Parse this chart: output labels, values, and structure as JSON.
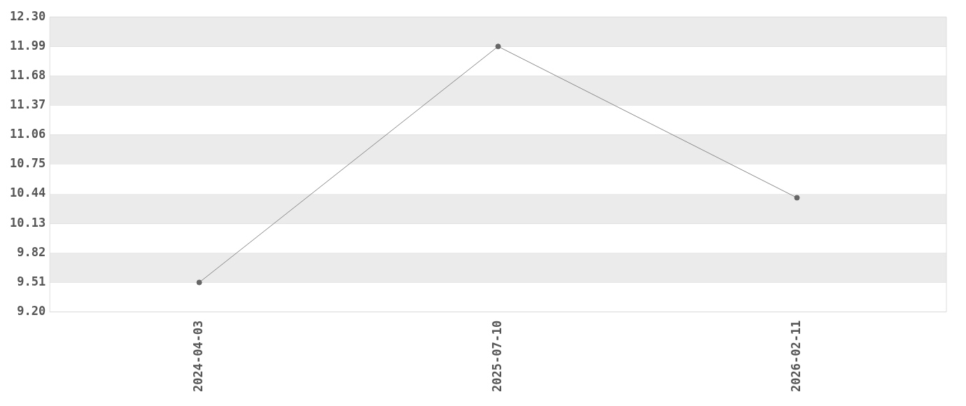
{
  "chart_data": {
    "type": "line",
    "categories": [
      "2024-04-03",
      "2025-07-10",
      "2026-02-11"
    ],
    "series": [
      {
        "color": "#666666",
        "values": [
          9.51,
          11.99,
          10.4
        ]
      }
    ],
    "ylim": [
      9.2,
      12.3
    ],
    "yticks": [
      {
        "value": 9.2,
        "label": "9.20"
      },
      {
        "value": 9.51,
        "label": "9.51"
      },
      {
        "value": 9.82,
        "label": "9.82"
      },
      {
        "value": 10.13,
        "label": "10.13"
      },
      {
        "value": 10.44,
        "label": "10.44"
      },
      {
        "value": 10.75,
        "label": "10.75"
      },
      {
        "value": 11.06,
        "label": "11.06"
      },
      {
        "value": 11.37,
        "label": "11.37"
      },
      {
        "value": 11.68,
        "label": "11.68"
      },
      {
        "value": 11.99,
        "label": "11.99"
      },
      {
        "value": 12.3,
        "label": "12.30"
      }
    ],
    "grid": "y",
    "marker": "circle",
    "line_style": "solid",
    "legend": false
  }
}
